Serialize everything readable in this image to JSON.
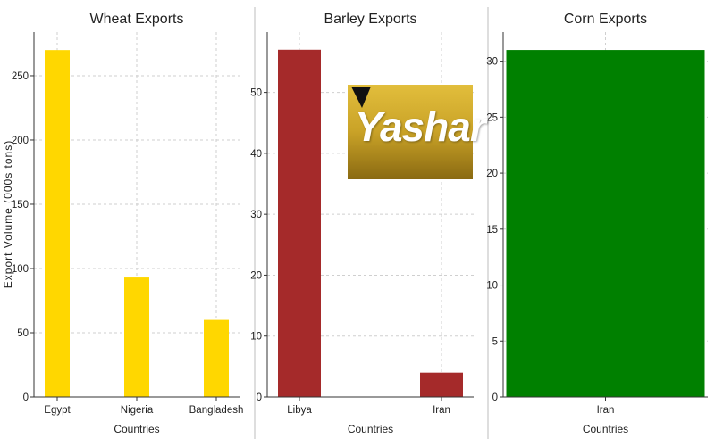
{
  "colors": {
    "wheat": "#FFD700",
    "barley": "#A52A2A",
    "corn": "#008000",
    "logo_gold": "#C9A227",
    "logo_dark": "#8A6A12"
  },
  "shared_ylabel": "Export Volume (000s tons)",
  "logo": {
    "text": "Yashar"
  },
  "chart_data": [
    {
      "type": "bar",
      "title": "Wheat Exports",
      "xlabel": "Countries",
      "categories": [
        "Egypt",
        "Nigeria",
        "Bangladesh"
      ],
      "values": [
        270,
        93,
        60
      ],
      "ylim": [
        0,
        284
      ],
      "yticks": [
        0,
        50,
        100,
        150,
        200,
        250
      ],
      "color": "#FFD700",
      "grid": true
    },
    {
      "type": "bar",
      "title": "Barley Exports",
      "xlabel": "Countries",
      "categories": [
        "Libya",
        "Iran"
      ],
      "values": [
        57,
        4
      ],
      "ylim": [
        0,
        59.9
      ],
      "yticks": [
        0,
        10,
        20,
        30,
        40,
        50
      ],
      "color": "#A52A2A",
      "grid": true
    },
    {
      "type": "bar",
      "title": "Corn Exports",
      "xlabel": "Countries",
      "categories": [
        "Iran"
      ],
      "values": [
        31
      ],
      "ylim": [
        0,
        32.6
      ],
      "yticks": [
        0,
        5,
        10,
        15,
        20,
        25,
        30
      ],
      "color": "#008000",
      "grid": true
    }
  ]
}
